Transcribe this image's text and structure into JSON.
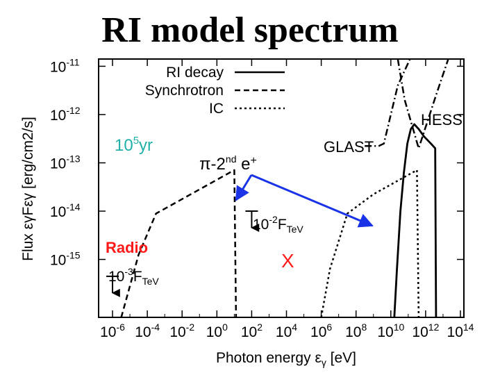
{
  "slide": {
    "title": "RI model spectrum"
  },
  "chart_data": {
    "type": "line",
    "title": "RI model spectrum",
    "xlabel": "Photon energy",
    "xlabel_symbol": "ε",
    "xlabel_sub": "γ",
    "xlabel_unit": "[eV]",
    "ylabel": "Flux εγFεγ [erg/cm2/s]",
    "xscale": "log",
    "yscale": "log",
    "xlim_exp": [
      -6.8,
      14.2
    ],
    "ylim_exp": [
      -16.2,
      -10.85
    ],
    "x_tick_exps": [
      -6,
      -4,
      -2,
      0,
      2,
      4,
      6,
      8,
      10,
      12,
      14
    ],
    "y_tick_exps": [
      -11,
      -12,
      -13,
      -14,
      -15
    ],
    "tick_base": "10",
    "legend": [
      {
        "label": "RI decay",
        "style": "solid"
      },
      {
        "label": "Synchrotron",
        "style": "dashed"
      },
      {
        "label": "IC",
        "style": "dotted"
      }
    ],
    "series": [
      {
        "name": "Synchrotron",
        "style": "dashed",
        "points": [
          [
            -5.5,
            -16.2
          ],
          [
            -4.5,
            -14.9
          ],
          [
            -3.5,
            -14.05
          ],
          [
            -1.5,
            -13.65
          ],
          [
            0.5,
            -13.25
          ],
          [
            1.0,
            -13.15
          ],
          [
            1.1,
            -16.2
          ]
        ]
      },
      {
        "name": "IC",
        "style": "dotted",
        "points": [
          [
            6.0,
            -16.2
          ],
          [
            6.5,
            -15.2
          ],
          [
            7.5,
            -14.05
          ],
          [
            9.0,
            -13.65
          ],
          [
            11.0,
            -13.25
          ],
          [
            11.5,
            -13.15
          ],
          [
            11.6,
            -16.2
          ]
        ]
      },
      {
        "name": "RI decay",
        "style": "solid",
        "points": [
          [
            10.2,
            -16.2
          ],
          [
            10.35,
            -15.2
          ],
          [
            10.55,
            -14.0
          ],
          [
            10.75,
            -13.2
          ],
          [
            10.95,
            -12.6
          ],
          [
            11.15,
            -12.3
          ],
          [
            11.35,
            -12.2
          ],
          [
            11.6,
            -12.3
          ],
          [
            11.9,
            -12.45
          ],
          [
            12.3,
            -12.6
          ],
          [
            12.55,
            -12.7
          ],
          [
            12.6,
            -16.2
          ]
        ]
      },
      {
        "name": "GLAST",
        "style": "dashdot",
        "points": [
          [
            8.5,
            -12.65
          ],
          [
            9.3,
            -12.65
          ],
          [
            9.6,
            -12.6
          ],
          [
            10.4,
            -11.4
          ],
          [
            11.1,
            -10.85
          ]
        ]
      },
      {
        "name": "HESS",
        "style": "dashdot",
        "points": [
          [
            10.4,
            -10.85
          ],
          [
            10.8,
            -11.7
          ],
          [
            11.6,
            -12.7
          ],
          [
            12.6,
            -11.6
          ],
          [
            13.3,
            -10.85
          ]
        ]
      }
    ],
    "upper_limits": [
      {
        "label": "10-3FTeV",
        "x_exp": -6.0,
        "y_exp": -15.35
      },
      {
        "label": "10-2FTeV",
        "x_exp": 2.0,
        "y_exp": -14.0
      }
    ],
    "annotations": {
      "age": {
        "base": "10",
        "exp": "5",
        "unit": "yr"
      },
      "radio": "Radio",
      "pi_label": {
        "main": "π-2",
        "sup": "nd",
        "tail": " e",
        "sup2": "+"
      },
      "glast": "GLAST",
      "hess": "HESS",
      "x_mark": "X",
      "ul_radio": {
        "base": "10",
        "exp": "-3",
        "f": "F",
        "sub": "TeV"
      },
      "ul_xray": {
        "base": "10",
        "exp": "-2",
        "f": "F",
        "sub": "TeV"
      }
    },
    "colors": {
      "age": "#1fb0a8",
      "radio": "#ff1a1a",
      "x_mark": "#ff1a1a",
      "arrow": "#1a33e6",
      "line": "#000000"
    }
  }
}
